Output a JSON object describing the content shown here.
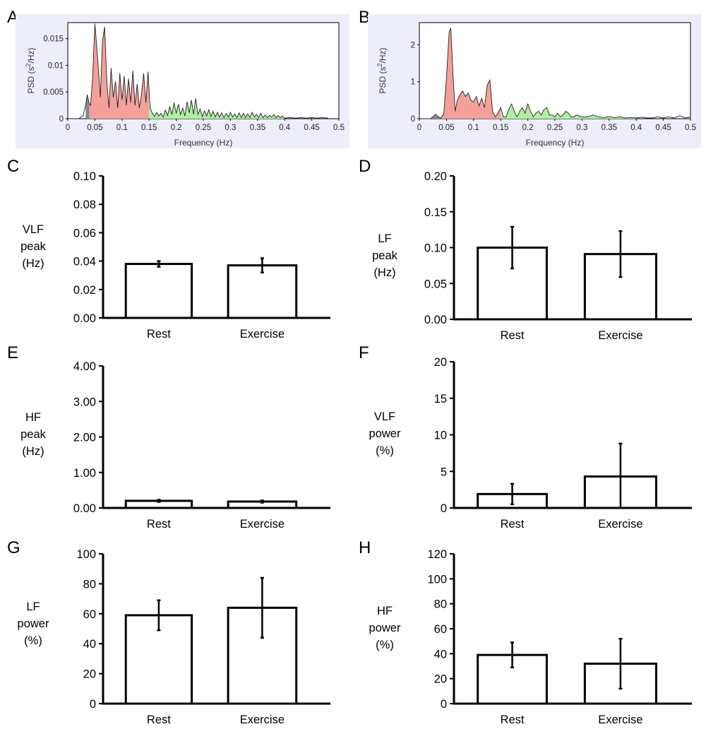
{
  "panel_labels": [
    "A",
    "B",
    "C",
    "D",
    "E",
    "F",
    "G",
    "H"
  ],
  "colors": {
    "spectrum_bg": "#eeeefb",
    "vlf_fill": "#888888",
    "lf_fill": "#f4a09a",
    "hf_fill": "#aef0a0",
    "bar_fill": "#ffffff",
    "bar_stroke": "#000000"
  },
  "chart_data": [
    {
      "id": "A",
      "type": "area",
      "xlabel": "Frequency (Hz)",
      "ylabel_parts": [
        "PSD (s",
        "2",
        "/Hz)"
      ],
      "xlim": [
        0,
        0.5
      ],
      "ylim": [
        0,
        0.018
      ],
      "xticks": [
        "0",
        "0.05",
        "0.1",
        "0.15",
        "0.2",
        "0.25",
        "0.3",
        "0.35",
        "0.4",
        "0.45",
        "0.5"
      ],
      "yticks": [
        "0",
        "0.005",
        "0.01",
        "0.015"
      ],
      "bands": [
        {
          "band": "VLF",
          "range": [
            0.033,
            0.04
          ],
          "color": "#888888"
        },
        {
          "band": "LF",
          "range": [
            0.04,
            0.15
          ],
          "color": "#f4a09a"
        },
        {
          "band": "HF",
          "range": [
            0.15,
            0.4
          ],
          "color": "#aef0a0"
        }
      ],
      "x": [
        0,
        0.02,
        0.028,
        0.033,
        0.036,
        0.039,
        0.042,
        0.046,
        0.05,
        0.055,
        0.06,
        0.064,
        0.068,
        0.072,
        0.076,
        0.08,
        0.084,
        0.088,
        0.092,
        0.096,
        0.1,
        0.104,
        0.108,
        0.112,
        0.116,
        0.12,
        0.124,
        0.128,
        0.132,
        0.136,
        0.14,
        0.144,
        0.148,
        0.152,
        0.156,
        0.16,
        0.164,
        0.168,
        0.172,
        0.176,
        0.18,
        0.184,
        0.188,
        0.192,
        0.196,
        0.2,
        0.204,
        0.208,
        0.212,
        0.216,
        0.22,
        0.224,
        0.228,
        0.232,
        0.236,
        0.24,
        0.244,
        0.248,
        0.252,
        0.256,
        0.26,
        0.264,
        0.268,
        0.272,
        0.276,
        0.28,
        0.284,
        0.288,
        0.292,
        0.296,
        0.3,
        0.304,
        0.308,
        0.312,
        0.316,
        0.32,
        0.324,
        0.328,
        0.332,
        0.336,
        0.34,
        0.344,
        0.348,
        0.352,
        0.356,
        0.36,
        0.364,
        0.368,
        0.372,
        0.376,
        0.38,
        0.384,
        0.388,
        0.392,
        0.396,
        0.4,
        0.41,
        0.42,
        0.43,
        0.44,
        0.45,
        0.46,
        0.47,
        0.48
      ],
      "y": [
        0,
        0,
        0.0005,
        0.0025,
        0.0045,
        0.003,
        0.0025,
        0.008,
        0.0178,
        0.0115,
        0.004,
        0.0145,
        0.0172,
        0.007,
        0.002,
        0.0095,
        0.004,
        0.007,
        0.002,
        0.0085,
        0.0035,
        0.008,
        0.0025,
        0.0075,
        0.003,
        0.009,
        0.0025,
        0.0065,
        0.002,
        0.0045,
        0.0085,
        0.003,
        0.0088,
        0.002,
        0.001,
        0.0004,
        0.0012,
        0.0005,
        0.001,
        0.0003,
        0.0016,
        0.0006,
        0.0023,
        0.0008,
        0.003,
        0.001,
        0.0027,
        0.0008,
        0.002,
        0.0005,
        0.0032,
        0.0011,
        0.0035,
        0.0008,
        0.0038,
        0.0008,
        0.0018,
        0.0004,
        0.0015,
        0.0005,
        0.0017,
        0.0004,
        0.0014,
        0.0003,
        0.0012,
        0.0003,
        0.0011,
        0.0002,
        0.001,
        0.0003,
        0.0012,
        0.0003,
        0.0009,
        0.0002,
        0.0011,
        0.0002,
        0.001,
        0.0002,
        0.0009,
        0.0002,
        0.0012,
        0.0003,
        0.0008,
        0.0002,
        0.001,
        0.0002,
        0.0007,
        0.0002,
        0.0006,
        0.0003,
        0.0008,
        0.0002,
        0.0006,
        0.0002,
        0.0005,
        0.0001,
        0.0002,
        0.0001,
        0.0002,
        0.0001,
        0.0002,
        0.0001,
        0.0002,
        0.0001
      ]
    },
    {
      "id": "B",
      "type": "area",
      "xlabel": "Frequency (Hz)",
      "ylabel_parts": [
        "PSD (s",
        "2",
        "/Hz)"
      ],
      "xlim": [
        0,
        0.5
      ],
      "ylim": [
        0,
        2.6
      ],
      "xticks": [
        "0",
        "0.05",
        "0.1",
        "0.15",
        "0.2",
        "0.25",
        "0.3",
        "0.35",
        "0.4",
        "0.45",
        "0.5"
      ],
      "yticks": [
        "0",
        "1",
        "2"
      ],
      "bands": [
        {
          "band": "VLF",
          "range": [
            0.02,
            0.04
          ],
          "color": "#888888"
        },
        {
          "band": "LF",
          "range": [
            0.04,
            0.15
          ],
          "color": "#f4a09a"
        },
        {
          "band": "HF",
          "range": [
            0.15,
            0.4
          ],
          "color": "#aef0a0"
        }
      ],
      "x": [
        0,
        0.02,
        0.025,
        0.03,
        0.035,
        0.04,
        0.045,
        0.05,
        0.055,
        0.058,
        0.062,
        0.066,
        0.07,
        0.075,
        0.08,
        0.085,
        0.09,
        0.095,
        0.1,
        0.105,
        0.11,
        0.115,
        0.12,
        0.125,
        0.13,
        0.135,
        0.14,
        0.145,
        0.15,
        0.155,
        0.16,
        0.165,
        0.17,
        0.175,
        0.18,
        0.185,
        0.19,
        0.195,
        0.2,
        0.205,
        0.21,
        0.215,
        0.22,
        0.225,
        0.23,
        0.235,
        0.24,
        0.245,
        0.25,
        0.255,
        0.26,
        0.265,
        0.27,
        0.275,
        0.28,
        0.285,
        0.29,
        0.3,
        0.31,
        0.32,
        0.33,
        0.34,
        0.35,
        0.36,
        0.37,
        0.38,
        0.39,
        0.4,
        0.41,
        0.42,
        0.43,
        0.44,
        0.45,
        0.46,
        0.47,
        0.48,
        0.49,
        0.5
      ],
      "y": [
        0,
        0,
        0.05,
        0.12,
        0.05,
        0.02,
        0.15,
        1.1,
        2.35,
        2.45,
        1.2,
        0.2,
        0.5,
        0.65,
        0.75,
        0.6,
        0.7,
        0.5,
        0.45,
        0.6,
        0.35,
        0.55,
        0.3,
        0.9,
        1.05,
        0.2,
        0.05,
        0.15,
        0.3,
        0.05,
        0.05,
        0.25,
        0.4,
        0.2,
        0.05,
        0.2,
        0.3,
        0.15,
        0.4,
        0.2,
        0.05,
        0.15,
        0.2,
        0.1,
        0.25,
        0.3,
        0.1,
        0.1,
        0.05,
        0.15,
        0.05,
        0.1,
        0.2,
        0.15,
        0.05,
        0.05,
        0.1,
        0.05,
        0.05,
        0.1,
        0.05,
        0.03,
        0.06,
        0.03,
        0.05,
        0.02,
        0.03,
        0.02,
        0.04,
        0.02,
        0.02,
        0.05,
        0.02,
        0.05,
        0.02,
        0.08,
        0.02,
        0.05
      ]
    },
    {
      "id": "C",
      "type": "bar",
      "ylabel_lines": [
        "VLF",
        "peak",
        "(Hz)"
      ],
      "categories": [
        "Rest",
        "Exercise"
      ],
      "values": [
        0.038,
        0.037
      ],
      "errors": [
        0.002,
        0.005
      ],
      "ylim": [
        0,
        0.1
      ],
      "yticks": [
        "0.00",
        "0.02",
        "0.04",
        "0.06",
        "0.08",
        "0.10"
      ]
    },
    {
      "id": "D",
      "type": "bar",
      "ylabel_lines": [
        "LF",
        "peak",
        "(Hz)"
      ],
      "categories": [
        "Rest",
        "Exercise"
      ],
      "values": [
        0.1,
        0.091
      ],
      "errors": [
        0.029,
        0.032
      ],
      "ylim": [
        0,
        0.2
      ],
      "yticks": [
        "0.00",
        "0.05",
        "0.10",
        "0.15",
        "0.20"
      ]
    },
    {
      "id": "E",
      "type": "bar",
      "ylabel_lines": [
        "HF",
        "peak",
        "(Hz)"
      ],
      "categories": [
        "Rest",
        "Exercise"
      ],
      "values": [
        0.2,
        0.18
      ],
      "errors": [
        0.03,
        0.03
      ],
      "ylim": [
        0,
        4
      ],
      "yticks": [
        "0.00",
        "1.00",
        "2.00",
        "3.00",
        "4.00"
      ]
    },
    {
      "id": "F",
      "type": "bar",
      "ylabel_lines": [
        "VLF",
        "power",
        "(%)"
      ],
      "categories": [
        "Rest",
        "Exercise"
      ],
      "values": [
        1.9,
        4.3
      ],
      "errors": [
        1.4,
        4.5
      ],
      "ylim": [
        0,
        20
      ],
      "yticks": [
        "0",
        "5",
        "10",
        "15",
        "20"
      ]
    },
    {
      "id": "G",
      "type": "bar",
      "ylabel_lines": [
        "LF",
        "power",
        "(%)"
      ],
      "categories": [
        "Rest",
        "Exercise"
      ],
      "values": [
        59,
        64
      ],
      "errors": [
        10,
        20
      ],
      "ylim": [
        0,
        100
      ],
      "yticks": [
        "0",
        "20",
        "40",
        "60",
        "80",
        "100"
      ]
    },
    {
      "id": "H",
      "type": "bar",
      "ylabel_lines": [
        "HF",
        "power",
        "(%)"
      ],
      "categories": [
        "Rest",
        "Exercise"
      ],
      "values": [
        39,
        32
      ],
      "errors": [
        10,
        20
      ],
      "ylim": [
        0,
        120
      ],
      "yticks": [
        "0",
        "20",
        "40",
        "60",
        "80",
        "100",
        "120"
      ]
    }
  ]
}
